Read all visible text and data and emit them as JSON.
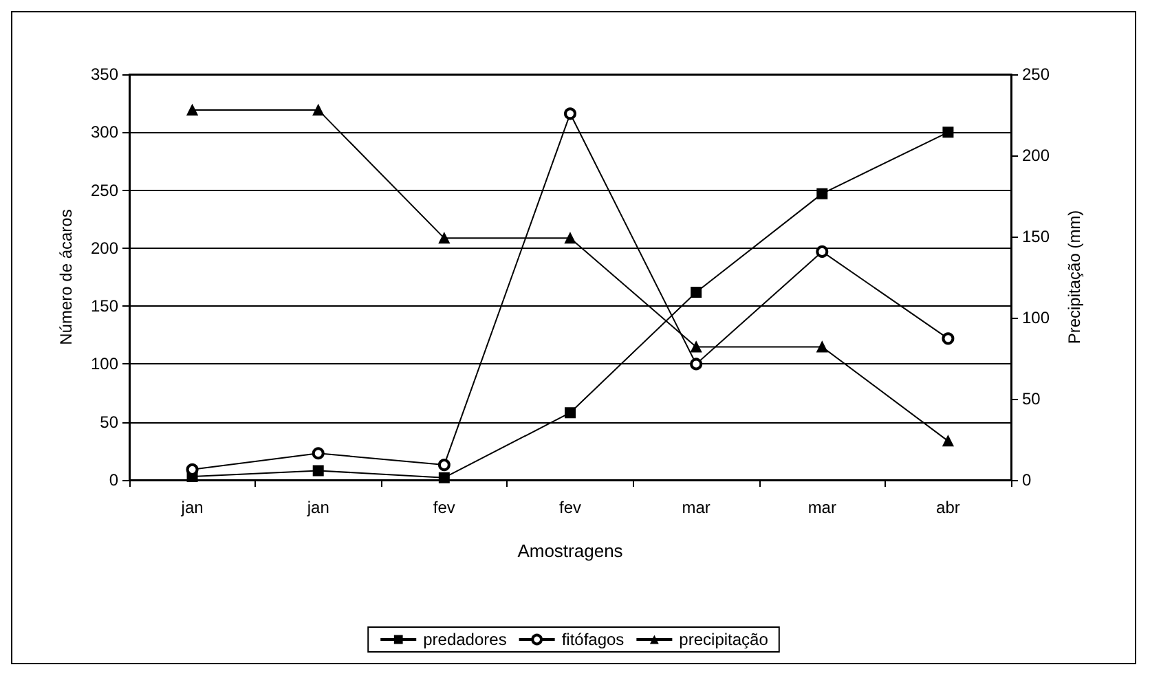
{
  "chart_data": {
    "type": "line",
    "xlabel": "Amostragens",
    "ylabel": "Número de ácaros",
    "y2label": "Precipitação (mm)",
    "categories": [
      "jan",
      "jan",
      "fev",
      "fev",
      "mar",
      "mar",
      "abr"
    ],
    "series": [
      {
        "name": "predadores",
        "color": "#000000",
        "marker": "square",
        "values": [
          3,
          8,
          2,
          58,
          162,
          247,
          300
        ]
      },
      {
        "name": "fitófagos",
        "color": "#000000",
        "marker": "circle",
        "values": [
          9,
          23,
          13,
          316,
          100,
          197,
          122
        ]
      },
      {
        "name": "precipitação",
        "color": "#000000",
        "marker": "triangle",
        "axis": "y2",
        "values": [
          228,
          228,
          149,
          149,
          82,
          82,
          24
        ]
      }
    ],
    "ylim": [
      0,
      350
    ],
    "yticks": [
      0,
      50,
      100,
      150,
      200,
      250,
      300,
      350
    ],
    "y2lim": [
      0,
      250
    ],
    "y2ticks": [
      0,
      50,
      100,
      150,
      200,
      250
    ],
    "grid": "y",
    "legend": "bottom",
    "line_style": "solid"
  }
}
